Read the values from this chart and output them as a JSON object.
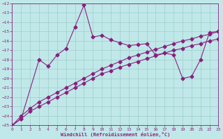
{
  "xlabel": "Windchill (Refroidissement éolien,°C)",
  "bg_color": "#c0e8e8",
  "grid_color": "#a0cccc",
  "line_color": "#882080",
  "xlim": [
    0,
    23
  ],
  "ylim": [
    -25,
    -12
  ],
  "yticks": [
    -25,
    -24,
    -23,
    -22,
    -21,
    -20,
    -19,
    -18,
    -17,
    -16,
    -15,
    -14,
    -13,
    -12
  ],
  "xticks": [
    0,
    1,
    2,
    3,
    4,
    5,
    6,
    7,
    8,
    9,
    10,
    11,
    12,
    13,
    14,
    15,
    16,
    17,
    18,
    19,
    20,
    21,
    22,
    23
  ],
  "s1_x": [
    0,
    1,
    2,
    3,
    4,
    5,
    6,
    7,
    8,
    9,
    10,
    11,
    12,
    13,
    14,
    15,
    16,
    17,
    18,
    19,
    20,
    21,
    22,
    23
  ],
  "s1_y": [
    -25,
    -24.3,
    -23.5,
    -23.0,
    -22.5,
    -22.0,
    -21.5,
    -21.0,
    -20.5,
    -20.0,
    -19.5,
    -19.2,
    -18.8,
    -18.5,
    -18.2,
    -17.9,
    -17.6,
    -17.3,
    -17.0,
    -16.8,
    -16.5,
    -16.3,
    -16.0,
    -15.8
  ],
  "s2_x": [
    0,
    1,
    2,
    3,
    4,
    5,
    6,
    7,
    8,
    9,
    10,
    11,
    12,
    13,
    14,
    15,
    16,
    17,
    18,
    19,
    20,
    21,
    22,
    23
  ],
  "s2_y": [
    -25,
    -24.0,
    -23.2,
    -22.5,
    -22.0,
    -21.5,
    -21.0,
    -20.5,
    -20.0,
    -19.5,
    -19.0,
    -18.6,
    -18.2,
    -17.8,
    -17.5,
    -17.2,
    -16.9,
    -16.6,
    -16.3,
    -16.0,
    -15.8,
    -15.5,
    -15.3,
    -15.0
  ],
  "s3_x": [
    0,
    1,
    3,
    4,
    5,
    6,
    7,
    8,
    9,
    10,
    11,
    12,
    13,
    14,
    15,
    16,
    17,
    18,
    19,
    20,
    21,
    22,
    23
  ],
  "s3_y": [
    -25,
    -24.3,
    -18.0,
    -18.7,
    -17.5,
    -16.8,
    -14.5,
    -12.2,
    -15.6,
    -15.4,
    -15.9,
    -16.2,
    -16.5,
    -16.4,
    -16.3,
    -17.5,
    -17.3,
    -17.5,
    -20.0,
    -19.8,
    -18.0,
    -15.1,
    -15.0
  ],
  "linewidth": 0.8,
  "markersize": 2.5
}
